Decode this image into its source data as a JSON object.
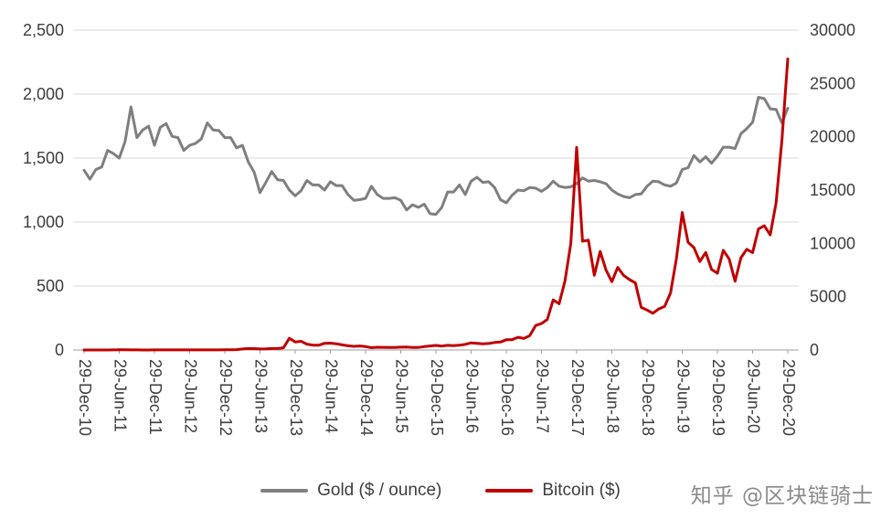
{
  "chart_data": {
    "type": "line",
    "title": "",
    "x_unit": "month",
    "x_start_label": "29-Dec-10",
    "x_end_label": "29-Dec-20",
    "tick_every": 6,
    "x_tick_labels": [
      "29-Dec-10",
      "29-Jun-11",
      "29-Dec-11",
      "29-Jun-12",
      "29-Dec-12",
      "29-Jun-13",
      "29-Dec-13",
      "29-Jun-14",
      "29-Dec-14",
      "29-Jun-15",
      "29-Dec-15",
      "29-Jun-16",
      "29-Dec-16",
      "29-Jun-17",
      "29-Dec-17",
      "29-Jun-18",
      "29-Dec-18",
      "29-Jun-19",
      "29-Dec-19",
      "29-Jun-20",
      "29-Dec-20"
    ],
    "left_axis": {
      "min": 0,
      "max": 2500,
      "step": 500,
      "labels": [
        "0",
        "500",
        "1,000",
        "1,500",
        "2,000",
        "2,500"
      ]
    },
    "right_axis": {
      "min": 0,
      "max": 30000,
      "step": 5000,
      "labels": [
        "0",
        "5000",
        "10000",
        "15000",
        "20000",
        "25000",
        "30000"
      ]
    },
    "grid_color": "#d9d9d9",
    "axis_line_color": "#9e9e9e",
    "tick_label_color": "#3d3d3d",
    "legend_position": "bottom",
    "series": [
      {
        "name": "Gold ($ / ounce)",
        "color": "#7f7f7f",
        "axis": "left",
        "values": [
          1405,
          1335,
          1410,
          1430,
          1560,
          1535,
          1500,
          1630,
          1900,
          1660,
          1720,
          1750,
          1600,
          1740,
          1770,
          1670,
          1660,
          1560,
          1600,
          1615,
          1650,
          1775,
          1720,
          1715,
          1660,
          1660,
          1580,
          1600,
          1470,
          1390,
          1230,
          1310,
          1395,
          1330,
          1325,
          1250,
          1205,
          1245,
          1325,
          1290,
          1290,
          1250,
          1315,
          1285,
          1285,
          1215,
          1170,
          1175,
          1185,
          1280,
          1215,
          1185,
          1185,
          1190,
          1170,
          1095,
          1135,
          1115,
          1140,
          1065,
          1060,
          1115,
          1235,
          1235,
          1290,
          1215,
          1320,
          1350,
          1310,
          1315,
          1270,
          1175,
          1150,
          1210,
          1250,
          1245,
          1270,
          1265,
          1240,
          1270,
          1320,
          1280,
          1270,
          1275,
          1300,
          1345,
          1320,
          1325,
          1315,
          1300,
          1250,
          1220,
          1200,
          1190,
          1215,
          1220,
          1280,
          1320,
          1315,
          1290,
          1280,
          1305,
          1410,
          1425,
          1520,
          1470,
          1510,
          1460,
          1515,
          1585,
          1585,
          1575,
          1690,
          1730,
          1780,
          1975,
          1965,
          1885,
          1880,
          1775,
          1890
        ]
      },
      {
        "name": "Bitcoin ($)",
        "color": "#c00000",
        "axis": "right",
        "values": [
          0.3,
          0.5,
          0.9,
          0.8,
          3,
          8,
          17,
          13,
          9,
          5,
          3.5,
          3,
          4.5,
          5.5,
          5,
          5,
          5,
          5,
          6.5,
          9,
          10,
          12.5,
          11,
          12.5,
          13.5,
          20,
          33,
          95,
          140,
          130,
          97,
          100,
          135,
          140,
          205,
          1100,
          755,
          815,
          550,
          455,
          445,
          625,
          640,
          585,
          480,
          390,
          340,
          375,
          320,
          215,
          255,
          245,
          235,
          230,
          263,
          285,
          230,
          236,
          315,
          377,
          430,
          370,
          437,
          415,
          450,
          530,
          670,
          625,
          575,
          610,
          700,
          745,
          960,
          970,
          1190,
          1080,
          1350,
          2300,
          2480,
          2875,
          4700,
          4340,
          6470,
          10000,
          19000,
          10200,
          10300,
          7000,
          9250,
          7500,
          6400,
          7750,
          7000,
          6600,
          6300,
          4000,
          3750,
          3450,
          3850,
          4100,
          5350,
          8550,
          12900,
          10100,
          9600,
          8300,
          9150,
          7550,
          7200,
          9350,
          8550,
          6450,
          8650,
          9450,
          9140,
          11350,
          11650,
          10800,
          13800,
          19700,
          27300
        ]
      }
    ]
  },
  "watermark": {
    "text": "知乎 @区块链骑士"
  }
}
